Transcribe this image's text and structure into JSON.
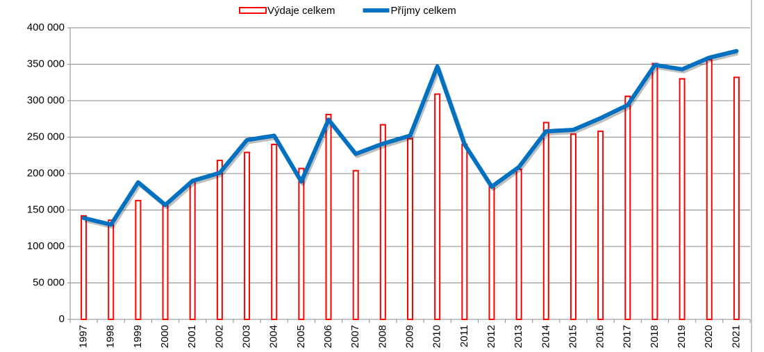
{
  "chart_data": {
    "type": "bar_line",
    "categories": [
      "1997",
      "1998",
      "1999",
      "2000",
      "2001",
      "2002",
      "2003",
      "2004",
      "2005",
      "2006",
      "2007",
      "2008",
      "2009",
      "2010",
      "2011",
      "2012",
      "2013",
      "2014",
      "2015",
      "2016",
      "2017",
      "2018",
      "2019",
      "2020",
      "2021"
    ],
    "series": [
      {
        "name": "Výdaje celkem",
        "type": "bar",
        "color": "#ff0000",
        "values": [
          142000,
          136000,
          163000,
          160000,
          189000,
          218000,
          229000,
          240000,
          207000,
          281000,
          204000,
          267000,
          248000,
          309000,
          240000,
          183000,
          206000,
          270000,
          254000,
          258000,
          306000,
          351000,
          330000,
          356000,
          332000
        ]
      },
      {
        "name": "Příjmy celkem",
        "type": "line",
        "color": "#0070c0",
        "values": [
          139000,
          130000,
          188000,
          157000,
          190000,
          201000,
          246000,
          252000,
          189000,
          274000,
          227000,
          241000,
          252000,
          347000,
          240000,
          182000,
          209000,
          258000,
          260000,
          276000,
          294000,
          349000,
          343000,
          359000,
          368000
        ]
      }
    ],
    "ylim": [
      0,
      400000
    ],
    "yticks": [
      0,
      {
        "value": 50000,
        "label": "50 000"
      },
      {
        "value": 100000,
        "label": "100 000"
      },
      {
        "value": 150000,
        "label": "150 000"
      },
      {
        "value": 200000,
        "label": "200 000"
      },
      {
        "value": 250000,
        "label": "250 000"
      },
      {
        "value": 300000,
        "label": "300 000"
      },
      {
        "value": 350000,
        "label": "350 000"
      },
      {
        "value": 400000,
        "label": "400 000"
      }
    ],
    "grid": true,
    "legend": "top"
  }
}
